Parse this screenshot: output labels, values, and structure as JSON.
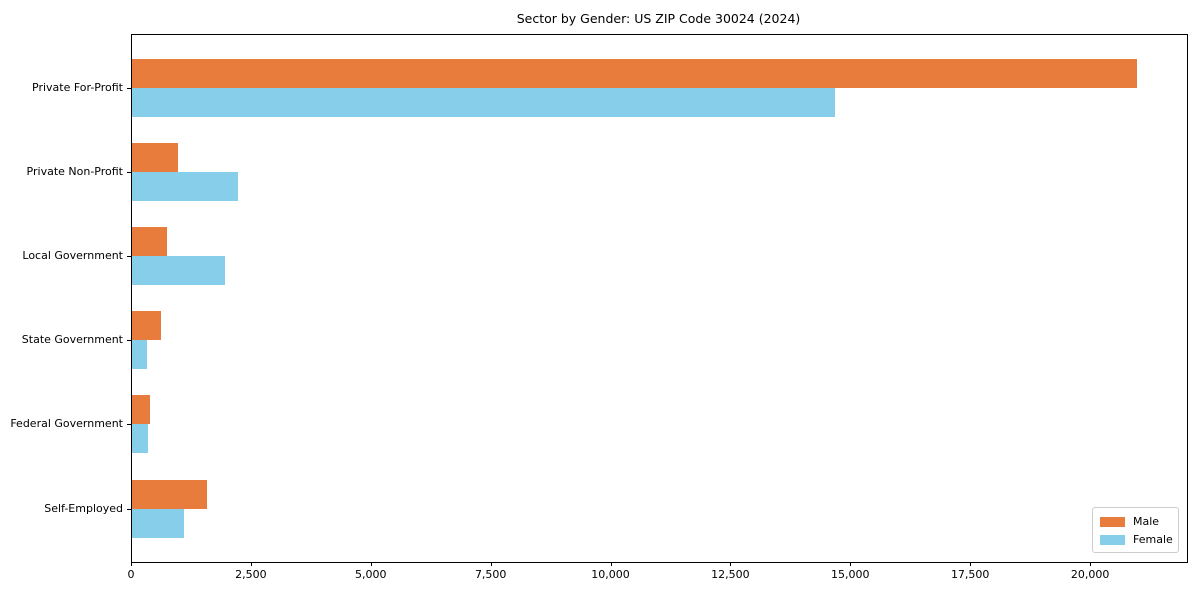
{
  "chart_data": {
    "type": "bar",
    "orientation": "horizontal",
    "title": "Sector by Gender: US ZIP Code 30024 (2024)",
    "categories": [
      "Private For-Profit",
      "Private Non-Profit",
      "Local Government",
      "State Government",
      "Federal Government",
      "Self-Employed"
    ],
    "series": [
      {
        "name": "Male",
        "color": "#e87c3c",
        "values": [
          20950,
          950,
          730,
          600,
          380,
          1560
        ]
      },
      {
        "name": "Female",
        "color": "#87ceeb",
        "values": [
          14650,
          2210,
          1940,
          310,
          330,
          1080
        ]
      }
    ],
    "xlim": [
      0,
      22000
    ],
    "xticks": [
      0,
      2500,
      5000,
      7500,
      10000,
      12500,
      15000,
      17500,
      20000
    ],
    "xtick_labels": [
      "0",
      "2,500",
      "5,000",
      "7,500",
      "10,000",
      "12,500",
      "15,000",
      "17,500",
      "20,000"
    ],
    "ylabel": "",
    "xlabel": "",
    "grid": false,
    "legend_position": "lower right",
    "background_color": "#ffffff",
    "axis_color": "#000000"
  }
}
